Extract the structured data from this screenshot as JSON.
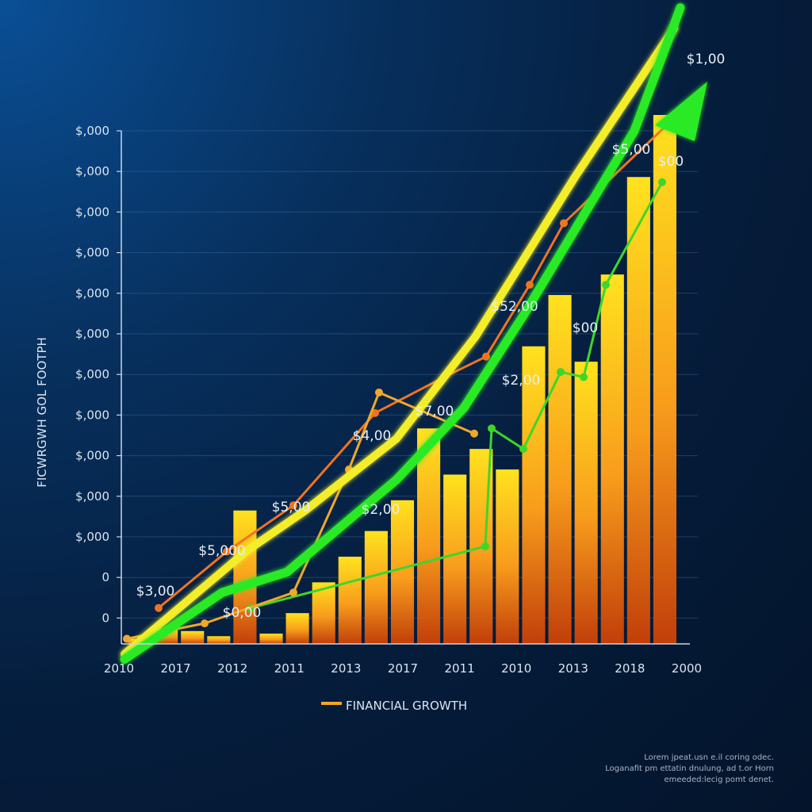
{
  "chart_data": {
    "type": "bar",
    "ylabel": "FICWRGWH GOL FOOTPH",
    "legend": {
      "label": "FINANCIAL GROWTH",
      "color": "#f5a623",
      "placement": "bottom-center"
    },
    "grid": true,
    "y_tick_labels": [
      "$,000",
      "$,000",
      "$,000",
      "$,000",
      "$,000",
      "$,000",
      "$,000",
      "$,000",
      "$,000",
      "$,000",
      "$,000",
      "0",
      "0"
    ],
    "x_tick_labels": [
      "2010",
      "2017",
      "2012",
      "2011",
      "2013",
      "2017",
      "2011",
      "2010",
      "2013",
      "2018",
      "2000"
    ],
    "ylim": [
      0,
      100
    ],
    "bars": [
      1,
      3,
      2.5,
      1.5,
      26,
      2,
      6,
      12,
      17,
      22,
      28,
      42,
      33,
      38,
      34,
      58,
      68,
      55,
      72,
      91,
      105
    ],
    "series": [
      {
        "color": "#f0741e",
        "values": [
          7,
          18,
          27,
          45,
          52,
          56,
          70,
          82,
          101
        ]
      },
      {
        "color": "#3ed62a",
        "values": [
          7,
          19,
          42,
          38,
          53,
          52,
          70,
          90
        ]
      },
      {
        "color": "#f0a82a",
        "values": [
          1,
          4,
          10,
          34,
          49,
          41
        ]
      }
    ],
    "trend_lines": [
      {
        "color": "#f4ee2a",
        "values": [
          -2,
          18,
          26,
          40,
          60,
          91,
          120
        ]
      },
      {
        "color": "#2bea26",
        "values": [
          -3,
          10,
          14,
          32,
          46,
          64,
          100,
          124
        ]
      }
    ],
    "annotations": [
      "$1,00",
      "$5,00",
      "$00",
      "$52,00",
      "$00",
      "$2,00",
      "$7,00",
      "$4,00",
      "$5,00",
      "$2,00",
      "$5,000",
      "$3,00",
      "$0,00"
    ]
  },
  "footer_text": [
    "Lorem jpeat.usn  e.il coring odec.",
    "Loganafit pm ettatin dnulung, ad t.or Horn",
    "emeeded:lecig pomt denet."
  ]
}
